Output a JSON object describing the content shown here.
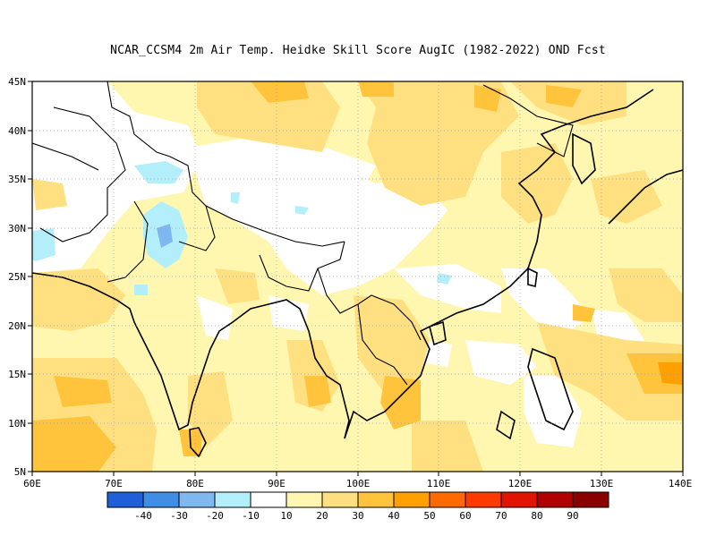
{
  "title": "NCAR_CCSM4  2m Air Temp. Heidke Skill Score AugIC (1982-2022) OND Fcst",
  "map": {
    "lat_labels": [
      "45N",
      "40N",
      "35N",
      "30N",
      "25N",
      "20N",
      "15N",
      "10N",
      "5N"
    ],
    "lon_labels": [
      "60E",
      "70E",
      "80E",
      "90E",
      "100E",
      "110E",
      "120E",
      "130E",
      "140E"
    ],
    "grid": true
  },
  "colorbar": {
    "colors": [
      "#1f5fd9",
      "#3f8ee6",
      "#7fb8f0",
      "#b3effa",
      "#ffffff",
      "#fff7b0",
      "#ffe080",
      "#ffc43c",
      "#ffa000",
      "#ff6a00",
      "#ff3a00",
      "#e01400",
      "#b00000",
      "#8a0000"
    ],
    "labels": [
      "-40",
      "-30",
      "-20",
      "-10",
      "10",
      "20",
      "30",
      "40",
      "50",
      "60",
      "70",
      "80",
      "90"
    ]
  }
}
